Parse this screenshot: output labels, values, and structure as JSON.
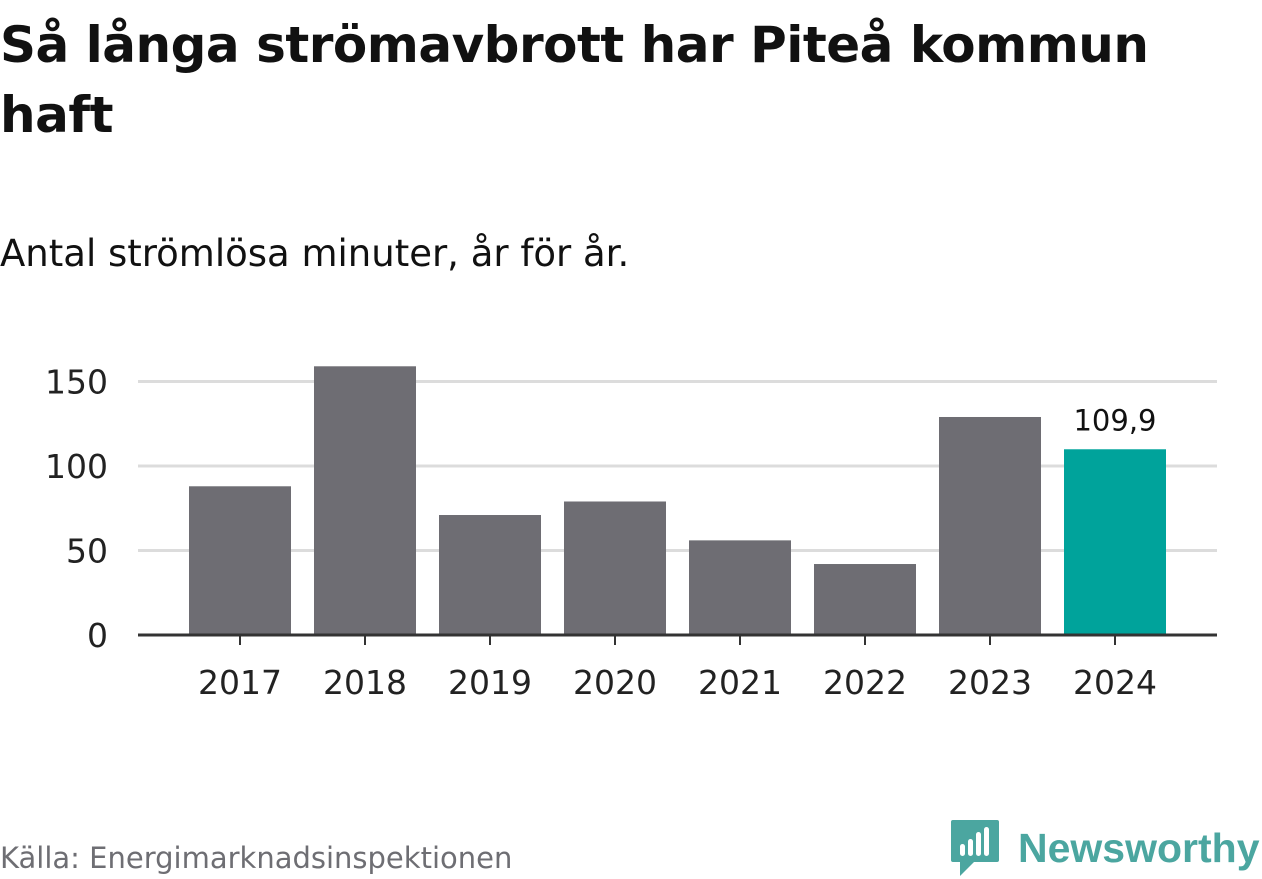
{
  "title": "Så långa strömavbrott har Piteå kommun haft",
  "subtitle": "Antal strömlösa minuter, år för år.",
  "source": "Källa: Energimarknadsinspektionen",
  "brand": {
    "name": "Newsworthy",
    "icon": "newsworthy-logo-icon"
  },
  "colors": {
    "bar": "#6e6d73",
    "highlight": "#00a39b",
    "grid": "#dcdcdc",
    "axis": "#333333",
    "brand": "#4ba6a0"
  },
  "chart_data": {
    "type": "bar",
    "title": "Så långa strömavbrott har Piteå kommun haft",
    "subtitle": "Antal strömlösa minuter, år för år.",
    "xlabel": "",
    "ylabel": "",
    "categories": [
      "2017",
      "2018",
      "2019",
      "2020",
      "2021",
      "2022",
      "2023",
      "2024"
    ],
    "values": [
      88,
      159,
      71,
      79,
      56,
      42,
      129,
      109.9
    ],
    "highlight_index": 7,
    "data_labels": [
      {
        "index": 7,
        "text": "109,9"
      }
    ],
    "ylim": [
      0,
      160
    ],
    "yticks": [
      0,
      50,
      100,
      150
    ],
    "ytick_labels": [
      "0",
      "50",
      "100",
      "150"
    ],
    "grid": true,
    "legend": "none"
  }
}
